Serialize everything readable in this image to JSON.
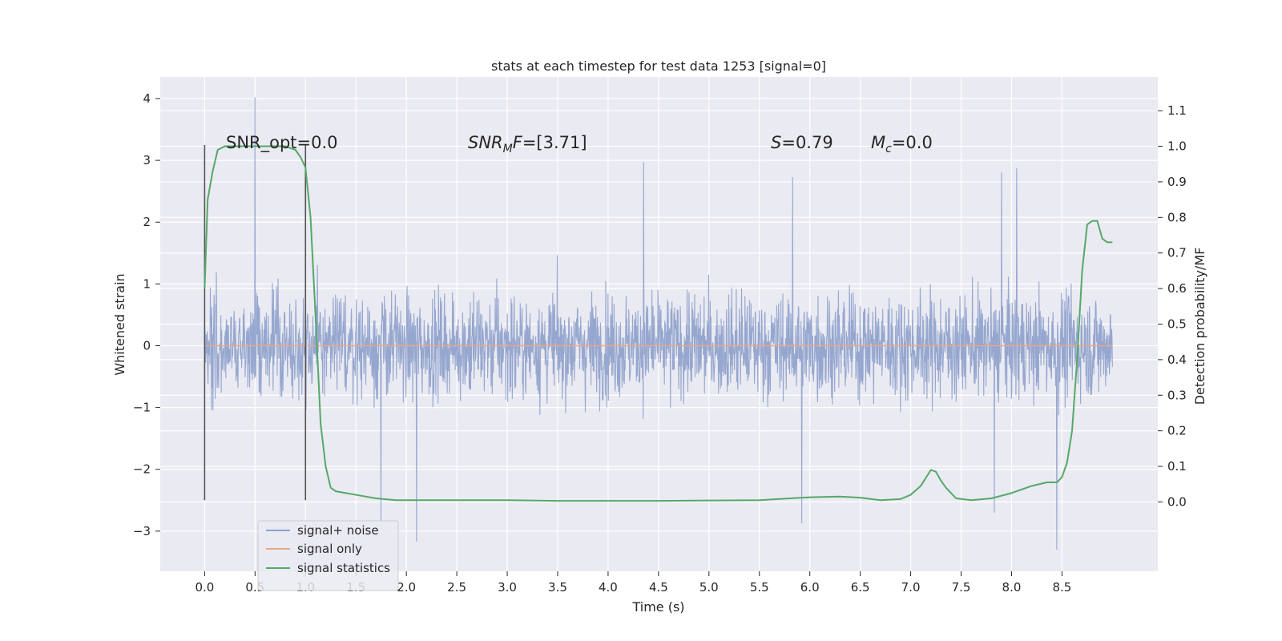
{
  "chart_data": {
    "type": "line",
    "title": "stats at each timestep for test data 1253 [signal=0]",
    "xlabel": "Time (s)",
    "ylabel": "Whitened strain",
    "y2label": "Detection probability/MF",
    "xlim": [
      -0.44,
      9.45
    ],
    "ylim": [
      -3.65,
      4.35
    ],
    "y2lim": [
      -0.195,
      1.195
    ],
    "x_ticks": [
      "0.0",
      "0.5",
      "1.0",
      "1.5",
      "2.0",
      "2.5",
      "3.0",
      "3.5",
      "4.0",
      "4.5",
      "5.0",
      "5.5",
      "6.0",
      "6.5",
      "7.0",
      "7.5",
      "8.0",
      "8.5"
    ],
    "y_ticks": [
      "−3",
      "−2",
      "−1",
      "0",
      "1",
      "2",
      "3",
      "4"
    ],
    "y2_ticks": [
      "0.0",
      "0.1",
      "0.2",
      "0.3",
      "0.4",
      "0.5",
      "0.6",
      "0.7",
      "0.8",
      "0.9",
      "1.0",
      "1.1"
    ],
    "annotations": {
      "snr_opt": "SNR_opt=0.0",
      "snr_mf_main": "SNR",
      "snr_mf_sub": "M",
      "snr_mf_tail": "F",
      "snr_mf_value": "=[3.71]",
      "s_sym": "S",
      "s_value": "=0.79",
      "mc_sym": "M",
      "mc_sub": "c",
      "mc_value": "=0.0"
    },
    "vertical_lines": [
      {
        "x": 0.0,
        "y_range": [
          -2.5,
          3.25
        ]
      },
      {
        "x": 1.0,
        "y_range": [
          -2.5,
          3.25
        ]
      }
    ],
    "legend": {
      "placement": "lower-left",
      "entries": [
        "signal+ noise",
        "signal only",
        "signal statistics"
      ]
    },
    "series": [
      {
        "name": "signal+ noise",
        "axis": "left",
        "color": "#8da0cb",
        "x_range": [
          0.0,
          9.0
        ],
        "envelope_peaks": [
          {
            "x": 0.5,
            "y": 4.02
          },
          {
            "x": 4.35,
            "y": 2.97
          },
          {
            "x": 5.83,
            "y": 2.73
          },
          {
            "x": 7.9,
            "y": 2.8
          },
          {
            "x": 8.05,
            "y": 2.87
          },
          {
            "x": 2.1,
            "y": -3.17
          },
          {
            "x": 8.45,
            "y": -3.3
          },
          {
            "x": 5.92,
            "y": -2.87
          },
          {
            "x": 7.83,
            "y": -2.7
          },
          {
            "x": 1.75,
            "y": -2.83
          }
        ],
        "typical_band": [
          -1.2,
          1.2
        ]
      },
      {
        "name": "signal only",
        "axis": "left",
        "color": "#e8a88a",
        "x": [
          0.0,
          9.0
        ],
        "y": [
          0.0,
          0.0
        ]
      },
      {
        "name": "signal statistics",
        "axis": "right",
        "color": "#55a868",
        "x": [
          0.0,
          0.03,
          0.08,
          0.13,
          0.2,
          0.3,
          0.5,
          0.7,
          0.8,
          0.9,
          0.95,
          1.0,
          1.05,
          1.1,
          1.15,
          1.2,
          1.25,
          1.3,
          1.4,
          1.5,
          1.7,
          1.9,
          2.0,
          2.5,
          3.0,
          3.5,
          4.0,
          4.5,
          5.0,
          5.5,
          5.8,
          6.0,
          6.3,
          6.5,
          6.7,
          6.9,
          7.0,
          7.1,
          7.2,
          7.25,
          7.3,
          7.35,
          7.45,
          7.6,
          7.8,
          8.0,
          8.2,
          8.35,
          8.45,
          8.5,
          8.55,
          8.6,
          8.65,
          8.7,
          8.75,
          8.8,
          8.85,
          8.9,
          8.95,
          9.0
        ],
        "y": [
          0.6,
          0.85,
          0.93,
          0.99,
          1.0,
          1.0,
          1.0,
          1.0,
          1.0,
          0.99,
          0.97,
          0.94,
          0.8,
          0.52,
          0.22,
          0.1,
          0.04,
          0.03,
          0.025,
          0.02,
          0.01,
          0.005,
          0.005,
          0.005,
          0.005,
          0.003,
          0.003,
          0.003,
          0.004,
          0.005,
          0.01,
          0.013,
          0.015,
          0.012,
          0.005,
          0.008,
          0.02,
          0.045,
          0.09,
          0.085,
          0.06,
          0.04,
          0.01,
          0.005,
          0.01,
          0.025,
          0.045,
          0.055,
          0.055,
          0.07,
          0.11,
          0.2,
          0.4,
          0.65,
          0.78,
          0.79,
          0.79,
          0.74,
          0.73,
          0.73
        ]
      }
    ]
  }
}
